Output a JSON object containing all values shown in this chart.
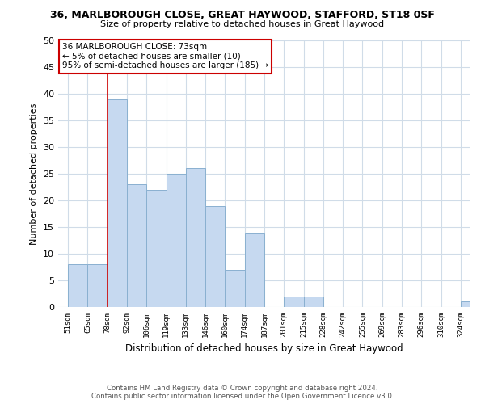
{
  "title": "36, MARLBOROUGH CLOSE, GREAT HAYWOOD, STAFFORD, ST18 0SF",
  "subtitle": "Size of property relative to detached houses in Great Haywood",
  "xlabel": "Distribution of detached houses by size in Great Haywood",
  "ylabel": "Number of detached properties",
  "bar_color": "#c6d9f0",
  "bar_edge_color": "#8ab0d0",
  "categories": [
    "51sqm",
    "65sqm",
    "78sqm",
    "92sqm",
    "106sqm",
    "119sqm",
    "133sqm",
    "146sqm",
    "160sqm",
    "174sqm",
    "187sqm",
    "201sqm",
    "215sqm",
    "228sqm",
    "242sqm",
    "255sqm",
    "269sqm",
    "283sqm",
    "296sqm",
    "310sqm",
    "324sqm"
  ],
  "values": [
    8,
    8,
    39,
    23,
    22,
    25,
    26,
    19,
    7,
    14,
    0,
    2,
    2,
    0,
    0,
    0,
    0,
    0,
    0,
    0,
    1
  ],
  "ylim": [
    0,
    50
  ],
  "yticks": [
    0,
    5,
    10,
    15,
    20,
    25,
    30,
    35,
    40,
    45,
    50
  ],
  "vline_x_index": 2,
  "vline_color": "#cc0000",
  "annotation_title": "36 MARLBOROUGH CLOSE: 73sqm",
  "annotation_line1": "← 5% of detached houses are smaller (10)",
  "annotation_line2": "95% of semi-detached houses are larger (185) →",
  "annotation_box_color": "#ffffff",
  "annotation_box_edge_color": "#cc0000",
  "footer1": "Contains HM Land Registry data © Crown copyright and database right 2024.",
  "footer2": "Contains public sector information licensed under the Open Government Licence v3.0.",
  "background_color": "#ffffff",
  "grid_color": "#d0dce8"
}
